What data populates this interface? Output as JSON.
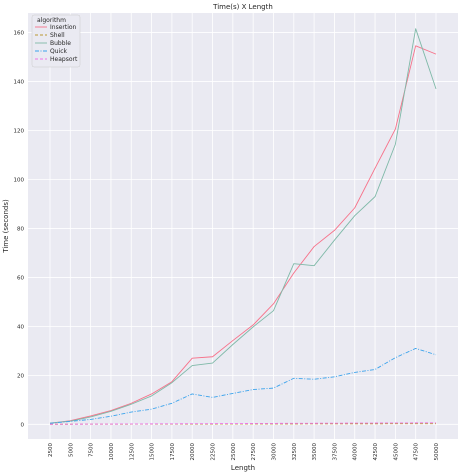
{
  "chart_data": {
    "type": "line",
    "title": "Time(s) X Length",
    "xlabel": "Length",
    "ylabel": "Time (seconds)",
    "x": [
      2500,
      5000,
      7500,
      10000,
      12500,
      15000,
      17500,
      20000,
      22500,
      25000,
      27500,
      30000,
      32500,
      35000,
      37500,
      40000,
      42500,
      45000,
      47500,
      50000
    ],
    "x_tick_labels": [
      "2500",
      "5000",
      "7500",
      "10000",
      "12500",
      "15000",
      "17500",
      "20000",
      "22500",
      "25000",
      "27500",
      "30000",
      "32500",
      "35000",
      "37500",
      "40000",
      "42500",
      "45000",
      "47500",
      "50000"
    ],
    "ylim": [
      -6,
      168
    ],
    "y_ticks": [
      0,
      20,
      40,
      60,
      80,
      100,
      120,
      140,
      160
    ],
    "y_tick_labels": [
      "0",
      "20",
      "40",
      "60",
      "80",
      "100",
      "120",
      "140",
      "160"
    ],
    "grid": true,
    "legend_title": "algorithm",
    "legend_position": "top-left",
    "series": [
      {
        "name": "Insertion",
        "color": "#f77189",
        "dash": "solid",
        "values": [
          0.4,
          1.5,
          3.4,
          5.6,
          8.6,
          12.4,
          17.4,
          27.0,
          27.6,
          34.2,
          40.6,
          49.2,
          61.8,
          72.6,
          79.2,
          88.4,
          104.6,
          120.6,
          154.6,
          151.2
        ]
      },
      {
        "name": "Shell",
        "color": "#bb9832",
        "dash": "dashed",
        "values": [
          0.02,
          0.03,
          0.05,
          0.06,
          0.08,
          0.09,
          0.1,
          0.12,
          0.13,
          0.14,
          0.15,
          0.16,
          0.18,
          0.19,
          0.2,
          0.22,
          0.23,
          0.24,
          0.26,
          0.27
        ]
      },
      {
        "name": "Bubble",
        "color": "#7fb9a8",
        "dash": "solid",
        "values": [
          0.5,
          1.3,
          3.0,
          5.3,
          8.2,
          11.6,
          17.0,
          24.0,
          25.0,
          32.6,
          39.8,
          46.4,
          65.6,
          64.8,
          75.2,
          85.2,
          93.0,
          114.4,
          161.6,
          137.0
        ]
      },
      {
        "name": "Quick",
        "color": "#3ba3ec",
        "dash": "dashdot",
        "values": [
          0.4,
          1.2,
          2.0,
          3.3,
          5.0,
          6.2,
          8.6,
          12.4,
          11.0,
          12.6,
          14.2,
          14.8,
          18.8,
          18.4,
          19.4,
          21.2,
          22.4,
          27.2,
          31.0,
          28.4
        ]
      },
      {
        "name": "Heapsort",
        "color": "#ee75e8",
        "dash": "dashed",
        "values": [
          0.03,
          0.06,
          0.09,
          0.12,
          0.15,
          0.18,
          0.21,
          0.25,
          0.28,
          0.31,
          0.34,
          0.37,
          0.4,
          0.43,
          0.46,
          0.5,
          0.53,
          0.56,
          0.59,
          0.62
        ]
      }
    ]
  }
}
